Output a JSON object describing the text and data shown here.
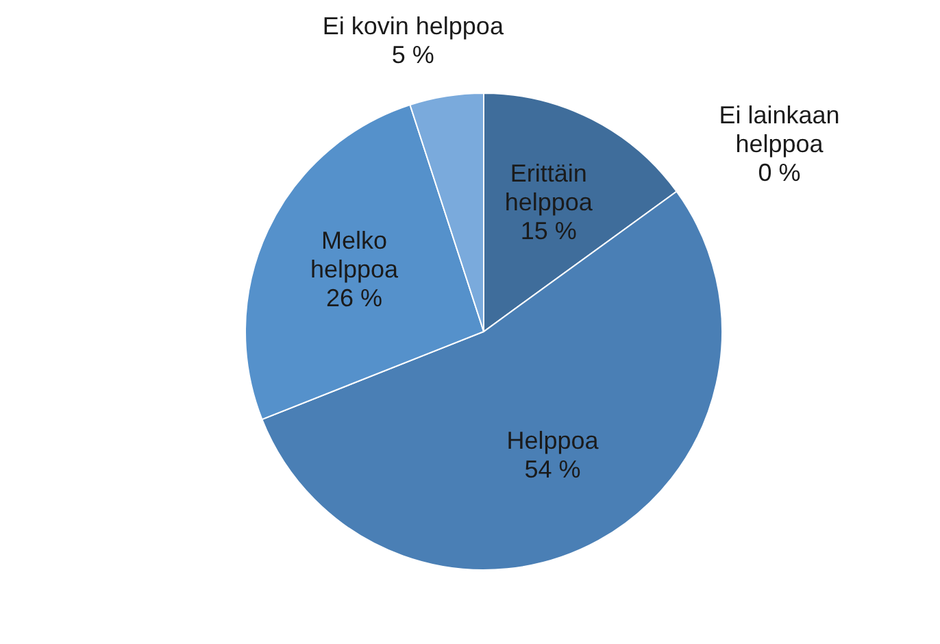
{
  "chart_data": {
    "type": "pie",
    "categories": [
      "Erittäin helppoa",
      "Helppoa",
      "Melko helppoa",
      "Ei kovin helppoa",
      "Ei lainkaan helppoa"
    ],
    "values": [
      15,
      54,
      26,
      5,
      0
    ],
    "value_labels": [
      "15 %",
      "54 %",
      "26 %",
      "5 %",
      "0 %"
    ],
    "colors": [
      "#3f6d9b",
      "#4a7fb5",
      "#5591cb",
      "#7aaadc",
      "#9cc0e6"
    ]
  }
}
